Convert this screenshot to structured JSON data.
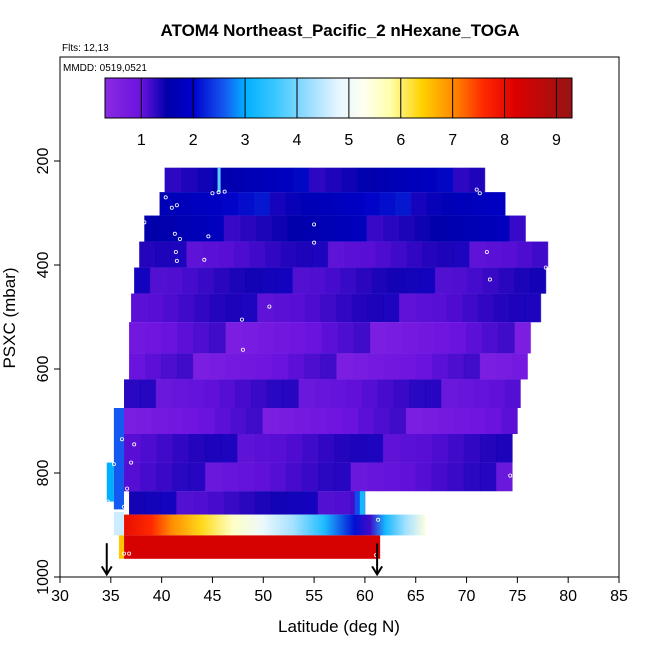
{
  "chart_data": {
    "type": "heatmap",
    "title": "ATOM4 Northeast_Pacific_2 nHexane_TOGA",
    "flights_label": "Flts: 12,13",
    "dates_label": "MMDD: 0519,0521",
    "xlabel": "Latitude (deg N)",
    "ylabel": "PSXC (mbar)",
    "xlim": [
      30,
      85
    ],
    "ylim": [
      1000,
      0
    ],
    "x_ticks": [
      "30",
      "35",
      "40",
      "45",
      "50",
      "55",
      "60",
      "65",
      "70",
      "75",
      "80",
      "85"
    ],
    "y_ticks": [
      "200",
      "400",
      "600",
      "800",
      "1000"
    ],
    "colorbar": {
      "ticks": [
        "1",
        "2",
        "3",
        "4",
        "5",
        "6",
        "7",
        "8",
        "9"
      ],
      "range": [
        0.3,
        9.3
      ]
    },
    "rows": [
      {
        "p_top": 213,
        "p_bot": 260,
        "x0": 40.3,
        "x1": 71.8,
        "v": 1.6
      },
      {
        "p_top": 260,
        "p_bot": 305,
        "x0": 39.8,
        "x1": 73.8,
        "v": 1.8
      },
      {
        "p_top": 305,
        "p_bot": 355,
        "x0": 38.3,
        "x1": 75.8,
        "v": 1.5
      },
      {
        "p_top": 355,
        "p_bot": 405,
        "x0": 37.8,
        "x1": 78.0,
        "v": 1.2
      },
      {
        "p_top": 405,
        "p_bot": 455,
        "x0": 37.3,
        "x1": 77.8,
        "v": 1.3
      },
      {
        "p_top": 455,
        "p_bot": 510,
        "x0": 37.0,
        "x1": 77.3,
        "v": 1.2
      },
      {
        "p_top": 510,
        "p_bot": 570,
        "x0": 36.8,
        "x1": 76.3,
        "v": 0.9
      },
      {
        "p_top": 570,
        "p_bot": 620,
        "x0": 36.8,
        "x1": 76.0,
        "v": 0.9
      },
      {
        "p_top": 620,
        "p_bot": 675,
        "x0": 36.3,
        "x1": 75.3,
        "v": 1.1
      },
      {
        "p_top": 675,
        "p_bot": 725,
        "x0": 35.8,
        "x1": 75.0,
        "v": 0.9
      },
      {
        "p_top": 725,
        "p_bot": 780,
        "x0": 36.3,
        "x1": 74.5,
        "v": 1.2
      },
      {
        "p_top": 780,
        "p_bot": 835,
        "x0": 36.3,
        "x1": 74.5,
        "v": 1.1
      },
      {
        "p_top": 835,
        "p_bot": 880,
        "x0": 36.8,
        "x1": 60.0,
        "v": 1.3
      },
      {
        "p_top": 880,
        "p_bot": 920,
        "x0": 36.3,
        "x1": 66.0,
        "v": 7.5
      },
      {
        "p_top": 920,
        "p_bot": 965,
        "x0": 36.3,
        "x1": 61.5,
        "v": 8.3
      }
    ],
    "bottom_band_gradient": [
      {
        "x": 36.3,
        "v": 8.0
      },
      {
        "x": 39.0,
        "v": 7.6
      },
      {
        "x": 41.0,
        "v": 7.0
      },
      {
        "x": 44.0,
        "v": 6.3
      },
      {
        "x": 47.0,
        "v": 5.6
      },
      {
        "x": 50.0,
        "v": 4.9
      },
      {
        "x": 53.0,
        "v": 4.3
      },
      {
        "x": 56.0,
        "v": 3.3
      },
      {
        "x": 59.0,
        "v": 2.1
      },
      {
        "x": 60.5,
        "v": 1.2
      },
      {
        "x": 62.0,
        "v": 3.2
      },
      {
        "x": 64.0,
        "v": 4.3
      },
      {
        "x": 66.0,
        "v": 5.4
      }
    ],
    "left_edge_cells": [
      {
        "x0": 34.6,
        "x1": 35.3,
        "p_top": 780,
        "p_bot": 855,
        "v": 3.0
      },
      {
        "x0": 35.3,
        "x1": 36.3,
        "p_top": 675,
        "p_bot": 870,
        "v": 2.6
      },
      {
        "x0": 35.3,
        "x1": 36.3,
        "p_top": 875,
        "p_bot": 920,
        "v": 4.6
      },
      {
        "x0": 35.8,
        "x1": 36.3,
        "p_top": 920,
        "p_bot": 965,
        "v": 6.5
      },
      {
        "x0": 45.5,
        "x1": 45.8,
        "p_top": 213,
        "p_bot": 260,
        "v": 3.8
      },
      {
        "x0": 59.0,
        "x1": 60.0,
        "p_top": 835,
        "p_bot": 880,
        "v": 2.5
      },
      {
        "x0": 59.5,
        "x1": 60.0,
        "p_top": 835,
        "p_bot": 880,
        "v": 3.2
      }
    ],
    "sample_points": [
      {
        "x": 40.4,
        "p": 270
      },
      {
        "x": 41.0,
        "p": 290
      },
      {
        "x": 41.5,
        "p": 285
      },
      {
        "x": 38.3,
        "p": 318
      },
      {
        "x": 41.3,
        "p": 340
      },
      {
        "x": 41.8,
        "p": 350
      },
      {
        "x": 45.0,
        "p": 262
      },
      {
        "x": 45.6,
        "p": 260
      },
      {
        "x": 46.2,
        "p": 259
      },
      {
        "x": 71.0,
        "p": 255
      },
      {
        "x": 71.3,
        "p": 262
      },
      {
        "x": 44.6,
        "p": 345
      },
      {
        "x": 55.0,
        "p": 357
      },
      {
        "x": 55.0,
        "p": 322
      },
      {
        "x": 41.4,
        "p": 375
      },
      {
        "x": 41.5,
        "p": 392
      },
      {
        "x": 44.2,
        "p": 390
      },
      {
        "x": 72.0,
        "p": 375
      },
      {
        "x": 72.3,
        "p": 428
      },
      {
        "x": 77.8,
        "p": 405
      },
      {
        "x": 50.6,
        "p": 480
      },
      {
        "x": 47.9,
        "p": 505
      },
      {
        "x": 36.5,
        "p": 530
      },
      {
        "x": 48.0,
        "p": 563
      },
      {
        "x": 36.6,
        "p": 590
      },
      {
        "x": 36.4,
        "p": 615
      },
      {
        "x": 36.1,
        "p": 735
      },
      {
        "x": 37.3,
        "p": 745
      },
      {
        "x": 37.0,
        "p": 780
      },
      {
        "x": 35.3,
        "p": 783
      },
      {
        "x": 36.6,
        "p": 830
      },
      {
        "x": 34.7,
        "p": 855
      },
      {
        "x": 36.3,
        "p": 865
      },
      {
        "x": 36.3,
        "p": 955
      },
      {
        "x": 36.8,
        "p": 955
      },
      {
        "x": 61.4,
        "p": 848
      },
      {
        "x": 61.3,
        "p": 890
      },
      {
        "x": 61.1,
        "p": 958
      },
      {
        "x": 74.3,
        "p": 805
      }
    ],
    "arrows": [
      {
        "x": 34.6
      },
      {
        "x": 61.2
      }
    ]
  }
}
